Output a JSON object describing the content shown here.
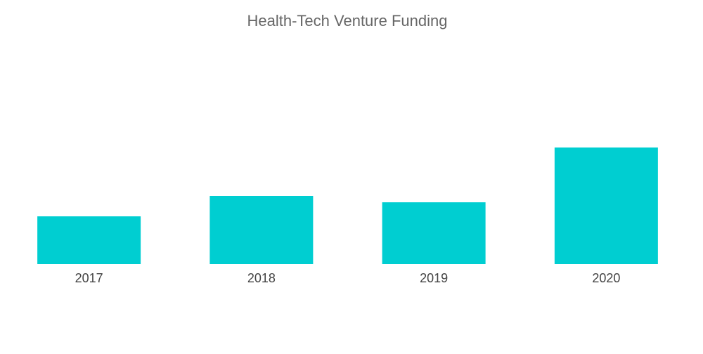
{
  "chart_data": {
    "type": "bar",
    "title": "Health-Tech Venture Funding",
    "categories": [
      "2017",
      "2018",
      "2019",
      "2020"
    ],
    "values": [
      6.8,
      9.7,
      8.8,
      16.6
    ],
    "color": "#00ced1"
  }
}
